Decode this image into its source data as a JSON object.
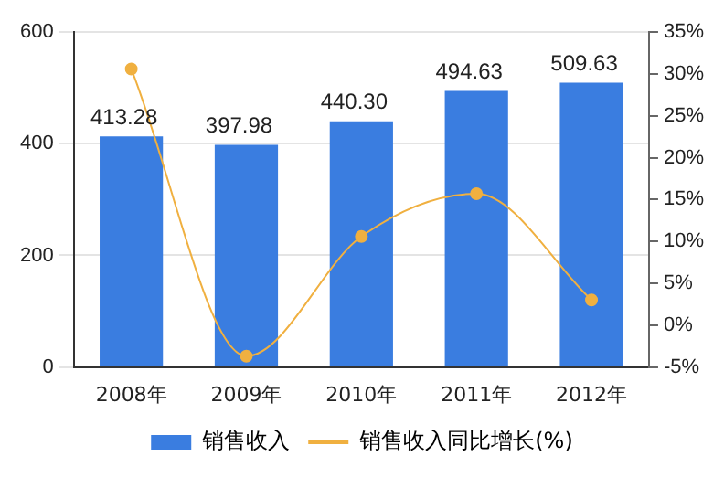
{
  "chart_data": {
    "type": "bar",
    "categories": [
      "2008年",
      "2009年",
      "2010年",
      "2011年",
      "2012年"
    ],
    "series": [
      {
        "name": "销售收入",
        "color": "#3a7de0",
        "values": [
          413.28,
          397.98,
          440.3,
          494.63,
          509.63
        ],
        "value_labels": [
          "413.28",
          "397.98",
          "440.30",
          "494.63",
          "509.63"
        ]
      },
      {
        "name": "销售收入同比增长(%)",
        "type": "line",
        "axis": "y2",
        "color": "#f0b040",
        "values": [
          30.6,
          -3.7,
          10.6,
          15.7,
          3.0
        ]
      }
    ],
    "ylim": [
      0,
      600
    ],
    "yticks": [
      0,
      200,
      400,
      600
    ],
    "y2lim": [
      -5,
      35
    ],
    "y2ticks": [
      {
        "value": -5,
        "label": "-5%"
      },
      {
        "value": 0,
        "label": "0%"
      },
      {
        "value": 5,
        "label": "5%"
      },
      {
        "value": 10,
        "label": "10%"
      },
      {
        "value": 15,
        "label": "15%"
      },
      {
        "value": 20,
        "label": "20%"
      },
      {
        "value": 25,
        "label": "25%"
      },
      {
        "value": 30,
        "label": "30%"
      },
      {
        "value": 35,
        "label": "35%"
      }
    ],
    "grid": "y",
    "legend": "bottom",
    "marker": "circle"
  }
}
